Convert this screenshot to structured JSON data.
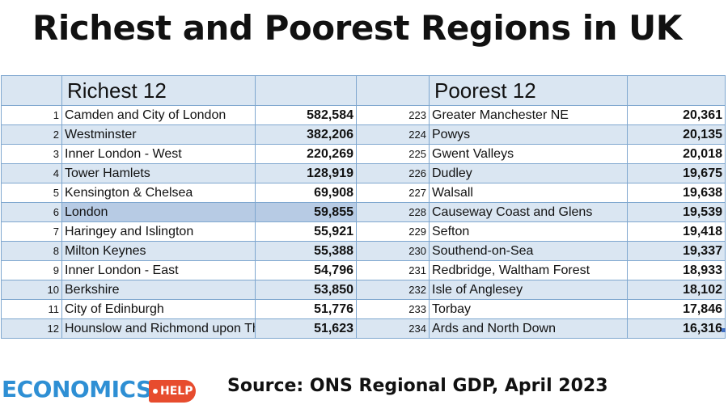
{
  "title": "Richest and Poorest Regions in UK",
  "richest_header": "Richest 12",
  "poorest_header": "Poorest 12",
  "rows": [
    {
      "r_rank": "1",
      "r_name": "Camden and City of London",
      "r_value": "582,584",
      "p_rank": "223",
      "p_name": "Greater Manchester NE",
      "p_value": "20,361"
    },
    {
      "r_rank": "2",
      "r_name": "Westminster",
      "r_value": "382,206",
      "p_rank": "224",
      "p_name": "Powys",
      "p_value": "20,135"
    },
    {
      "r_rank": "3",
      "r_name": "Inner London - West",
      "r_value": "220,269",
      "p_rank": "225",
      "p_name": "Gwent Valleys",
      "p_value": "20,018"
    },
    {
      "r_rank": "4",
      "r_name": "Tower Hamlets",
      "r_value": "128,919",
      "p_rank": "226",
      "p_name": "Dudley",
      "p_value": "19,675"
    },
    {
      "r_rank": "5",
      "r_name": "Kensington & Chelsea",
      "r_value": "69,908",
      "p_rank": "227",
      "p_name": "Walsall",
      "p_value": "19,638"
    },
    {
      "r_rank": "6",
      "r_name": "London",
      "r_value": "59,855",
      "p_rank": "228",
      "p_name": "Causeway Coast and Glens",
      "p_value": "19,539"
    },
    {
      "r_rank": "7",
      "r_name": "Haringey and Islington",
      "r_value": "55,921",
      "p_rank": "229",
      "p_name": "Sefton",
      "p_value": "19,418"
    },
    {
      "r_rank": "8",
      "r_name": "Milton Keynes",
      "r_value": "55,388",
      "p_rank": "230",
      "p_name": "Southend-on-Sea",
      "p_value": "19,337"
    },
    {
      "r_rank": "9",
      "r_name": "Inner London - East",
      "r_value": "54,796",
      "p_rank": "231",
      "p_name": "Redbridge, Waltham Forest",
      "p_value": "18,933"
    },
    {
      "r_rank": "10",
      "r_name": "Berkshire",
      "r_value": "53,850",
      "p_rank": "232",
      "p_name": "Isle of Anglesey",
      "p_value": "18,102"
    },
    {
      "r_rank": "11",
      "r_name": "City of Edinburgh",
      "r_value": "51,776",
      "p_rank": "233",
      "p_name": "Torbay",
      "p_value": "17,846"
    },
    {
      "r_rank": "12",
      "r_name": "Hounslow and Richmond upon Thames",
      "r_value": "51,623",
      "p_rank": "234",
      "p_name": "Ards and North Down",
      "p_value": "16,316"
    }
  ],
  "highlighted_row": "London",
  "logo": {
    "main": "ECONOMICS",
    "tag": "HELP"
  },
  "source": "Source: ONS Regional GDP, April 2023",
  "colors": {
    "band": "#dae6f2",
    "highlight": "#b7cbe4",
    "border": "#7fa7cf",
    "logo_blue": "#2e8fd4",
    "logo_red": "#e74c2e"
  }
}
